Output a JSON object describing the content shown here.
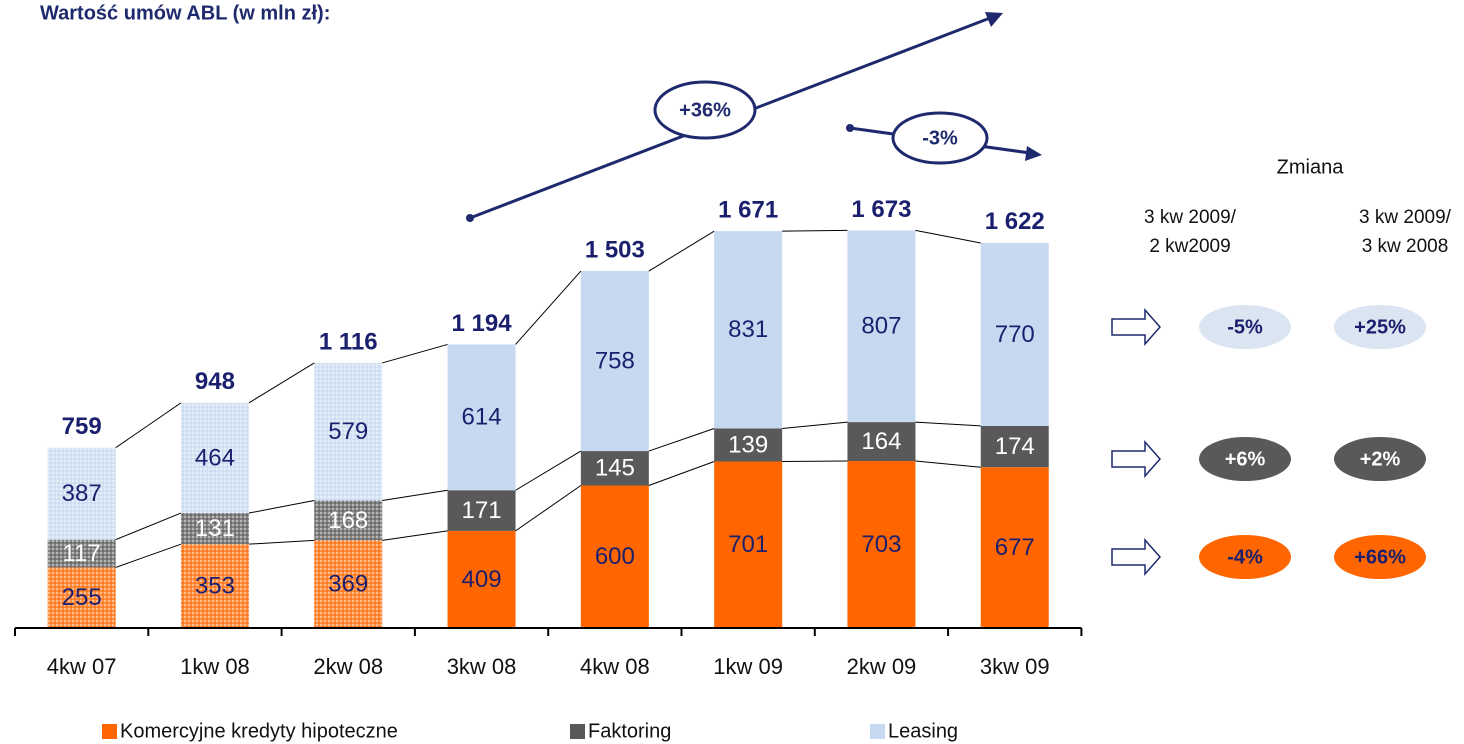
{
  "chart_data": {
    "type": "stacked_bar",
    "title": "Wartość umów ABL (w mln zł):",
    "categories": [
      "4kw 07",
      "1kw 08",
      "2kw 08",
      "3kw 08",
      "4kw 08",
      "1kw 09",
      "2kw 09",
      "3kw 09"
    ],
    "series": [
      {
        "name": "Komercyjne kredyty  hipoteczne",
        "color": "#ff6600",
        "values": [
          255,
          353,
          369,
          409,
          600,
          701,
          703,
          677
        ]
      },
      {
        "name": "Faktoring",
        "color": "#595959",
        "values": [
          117,
          131,
          168,
          171,
          145,
          139,
          164,
          174
        ]
      },
      {
        "name": "Leasing",
        "color": "#c6d9f1",
        "values": [
          387,
          464,
          579,
          614,
          758,
          831,
          807,
          770
        ]
      }
    ],
    "pattern": [
      true,
      true,
      true,
      false,
      false,
      false,
      false,
      false
    ],
    "totals": {
      "values": [
        759,
        948,
        1116,
        1194,
        1503,
        1671,
        1673,
        1622
      ],
      "value_labels": [
        "759",
        "948",
        "1 116",
        "1 194",
        "1 503",
        "1 671",
        "1 673",
        "1 622"
      ]
    },
    "ylim": [
      0,
      2000
    ],
    "annotations": [
      "+36%",
      "-3%"
    ],
    "change_table": {
      "title": "Zmiana",
      "columns": [
        [
          "3 kw 2009/",
          "2 kw2009"
        ],
        [
          "3 kw 2009/",
          "3 kw 2008"
        ]
      ],
      "rows": [
        [
          "-5%",
          "+25%"
        ],
        [
          "+6%",
          "+2%"
        ],
        [
          "-4%",
          "+66%"
        ]
      ]
    }
  }
}
